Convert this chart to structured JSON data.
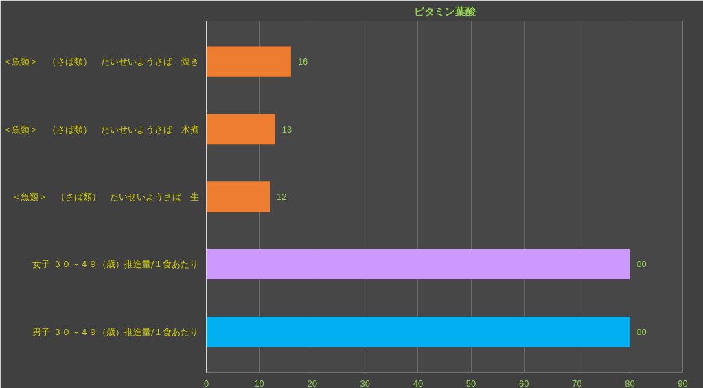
{
  "chart_data": {
    "type": "bar",
    "orientation": "horizontal",
    "title": "ビタミン葉酸",
    "categories": [
      "＜魚類＞　（さば類）　たいせいようさば　焼き",
      "＜魚類＞　（さば類）　たいせいようさば　水煮",
      "＜魚類＞　（さば類）　たいせいようさば　生",
      "女子 ３０～４９（歳）推進量/１食あたり",
      "男子 ３０～４９（歳）推進量/１食あたり"
    ],
    "values": [
      16,
      13,
      12,
      80,
      80
    ],
    "colors": [
      "#ed7d31",
      "#ed7d31",
      "#ed7d31",
      "#cc99ff",
      "#00b0f0"
    ],
    "xlim": [
      0,
      90
    ],
    "xticks": [
      0,
      10,
      20,
      30,
      40,
      50,
      60,
      70,
      80,
      90
    ],
    "grid": "x",
    "data_labels": true
  }
}
